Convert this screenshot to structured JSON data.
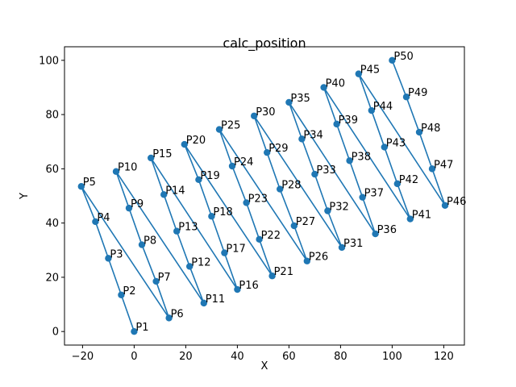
{
  "chart_data": {
    "type": "line",
    "title": "calc_position",
    "xlabel": "X",
    "ylabel": "Y",
    "xlim": [
      -27,
      128
    ],
    "ylim": [
      -5,
      105
    ],
    "xticks": [
      -20,
      0,
      20,
      40,
      60,
      80,
      100,
      120
    ],
    "yticks": [
      0,
      20,
      40,
      60,
      80,
      100
    ],
    "grid": false,
    "color": "#1f77b4",
    "series": [
      {
        "points": [
          {
            "label": "P1",
            "x": 0.0,
            "y": 0.0
          },
          {
            "label": "P2",
            "x": -5.0,
            "y": 13.5
          },
          {
            "label": "P3",
            "x": -10.0,
            "y": 27.0
          },
          {
            "label": "P4",
            "x": -15.0,
            "y": 40.5
          },
          {
            "label": "P5",
            "x": -20.5,
            "y": 53.5
          },
          {
            "label": "P6",
            "x": 13.5,
            "y": 5.0
          },
          {
            "label": "P7",
            "x": 8.5,
            "y": 18.5
          },
          {
            "label": "P8",
            "x": 3.0,
            "y": 32.0
          },
          {
            "label": "P9",
            "x": -2.0,
            "y": 45.5
          },
          {
            "label": "P10",
            "x": -7.0,
            "y": 59.0
          },
          {
            "label": "P11",
            "x": 27.0,
            "y": 10.5
          },
          {
            "label": "P12",
            "x": 21.5,
            "y": 24.0
          },
          {
            "label": "P13",
            "x": 16.5,
            "y": 37.0
          },
          {
            "label": "P14",
            "x": 11.5,
            "y": 50.5
          },
          {
            "label": "P15",
            "x": 6.5,
            "y": 64.0
          },
          {
            "label": "P16",
            "x": 40.0,
            "y": 15.5
          },
          {
            "label": "P17",
            "x": 35.0,
            "y": 29.0
          },
          {
            "label": "P18",
            "x": 30.0,
            "y": 42.5
          },
          {
            "label": "P19",
            "x": 25.0,
            "y": 56.0
          },
          {
            "label": "P20",
            "x": 19.5,
            "y": 69.0
          },
          {
            "label": "P21",
            "x": 53.5,
            "y": 20.5
          },
          {
            "label": "P22",
            "x": 48.5,
            "y": 34.0
          },
          {
            "label": "P23",
            "x": 43.5,
            "y": 47.5
          },
          {
            "label": "P24",
            "x": 38.0,
            "y": 61.0
          },
          {
            "label": "P25",
            "x": 33.0,
            "y": 74.5
          },
          {
            "label": "P26",
            "x": 67.0,
            "y": 26.0
          },
          {
            "label": "P27",
            "x": 62.0,
            "y": 39.0
          },
          {
            "label": "P28",
            "x": 56.5,
            "y": 52.5
          },
          {
            "label": "P29",
            "x": 51.5,
            "y": 66.0
          },
          {
            "label": "P30",
            "x": 46.5,
            "y": 79.5
          },
          {
            "label": "P31",
            "x": 80.5,
            "y": 31.0
          },
          {
            "label": "P32",
            "x": 75.0,
            "y": 44.5
          },
          {
            "label": "P33",
            "x": 70.0,
            "y": 58.0
          },
          {
            "label": "P34",
            "x": 65.0,
            "y": 71.0
          },
          {
            "label": "P35",
            "x": 60.0,
            "y": 84.5
          },
          {
            "label": "P36",
            "x": 93.5,
            "y": 36.0
          },
          {
            "label": "P37",
            "x": 88.5,
            "y": 49.5
          },
          {
            "label": "P38",
            "x": 83.5,
            "y": 63.0
          },
          {
            "label": "P39",
            "x": 78.5,
            "y": 76.5
          },
          {
            "label": "P40",
            "x": 73.5,
            "y": 90.0
          },
          {
            "label": "P41",
            "x": 107.0,
            "y": 41.5
          },
          {
            "label": "P42",
            "x": 102.0,
            "y": 54.5
          },
          {
            "label": "P43",
            "x": 97.0,
            "y": 68.0
          },
          {
            "label": "P44",
            "x": 92.0,
            "y": 81.5
          },
          {
            "label": "P45",
            "x": 87.0,
            "y": 95.0
          },
          {
            "label": "P46",
            "x": 120.5,
            "y": 46.5
          },
          {
            "label": "P47",
            "x": 115.5,
            "y": 60.0
          },
          {
            "label": "P48",
            "x": 110.5,
            "y": 73.5
          },
          {
            "label": "P49",
            "x": 105.5,
            "y": 86.5
          },
          {
            "label": "P50",
            "x": 100.0,
            "y": 100.0
          }
        ]
      }
    ]
  }
}
